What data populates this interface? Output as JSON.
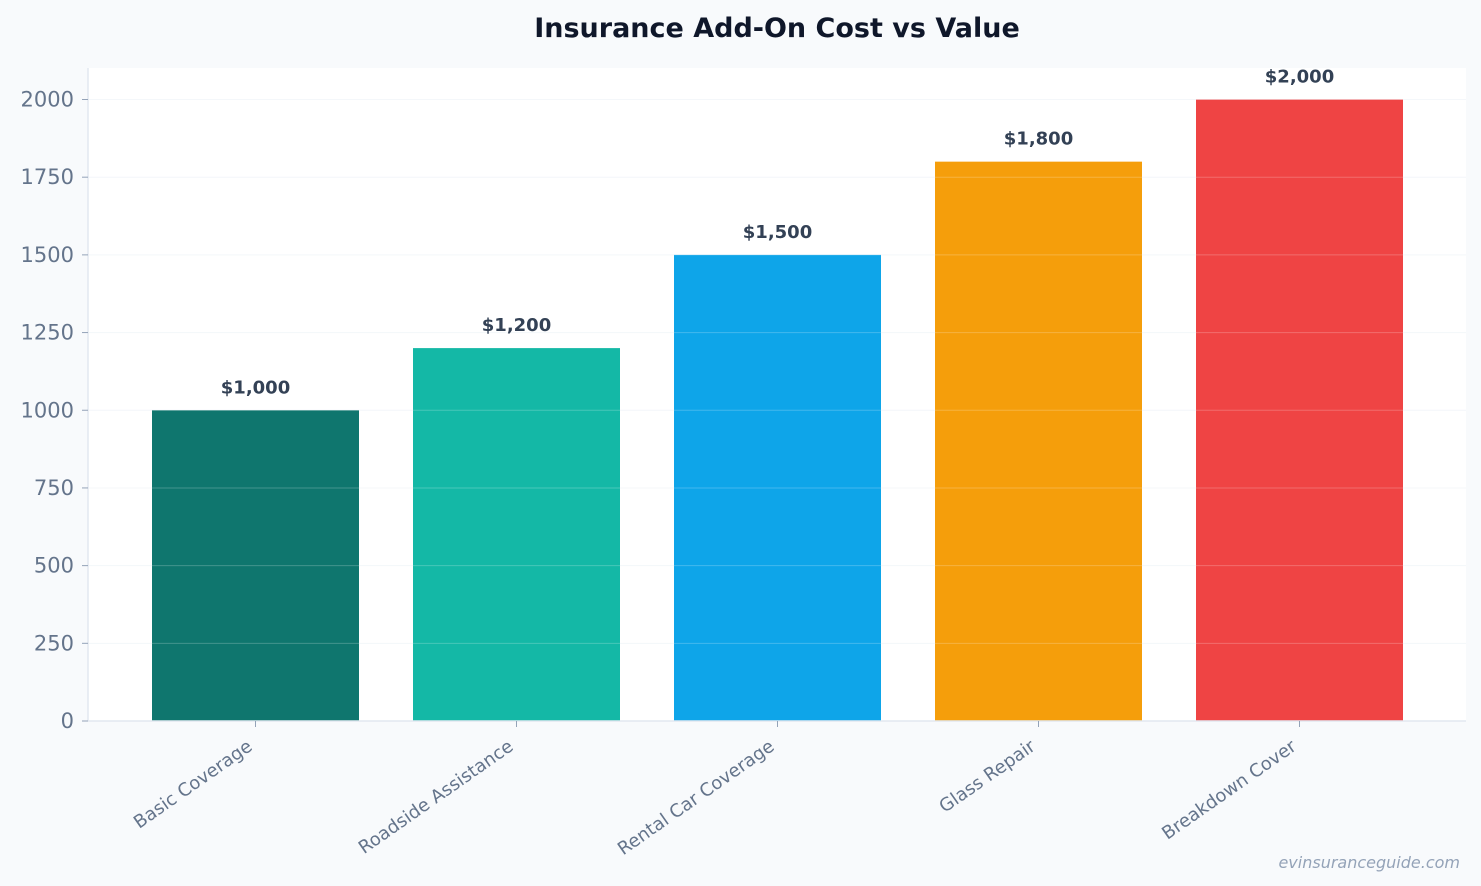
{
  "chart_data": {
    "type": "bar",
    "title": "Insurance Add-On Cost vs Value",
    "categories": [
      "Basic Coverage",
      "Roadside Assistance",
      "Rental Car Coverage",
      "Glass Repair",
      "Breakdown Cover"
    ],
    "values": [
      1000,
      1200,
      1500,
      1800,
      2000
    ],
    "data_labels": [
      "$1,000",
      "$1,200",
      "$1,500",
      "$1,800",
      "$2,000"
    ],
    "colors": [
      "#0f766e",
      "#14b8a6",
      "#0ea5e9",
      "#f59e0b",
      "#ef4444"
    ],
    "xlabel": "",
    "ylabel": "",
    "ylim": [
      0,
      2100
    ],
    "yticks": [
      0,
      250,
      500,
      750,
      1000,
      1250,
      1500,
      1750,
      2000
    ],
    "grid": true,
    "legend": "none"
  },
  "watermark": "evinsuranceguide.com"
}
